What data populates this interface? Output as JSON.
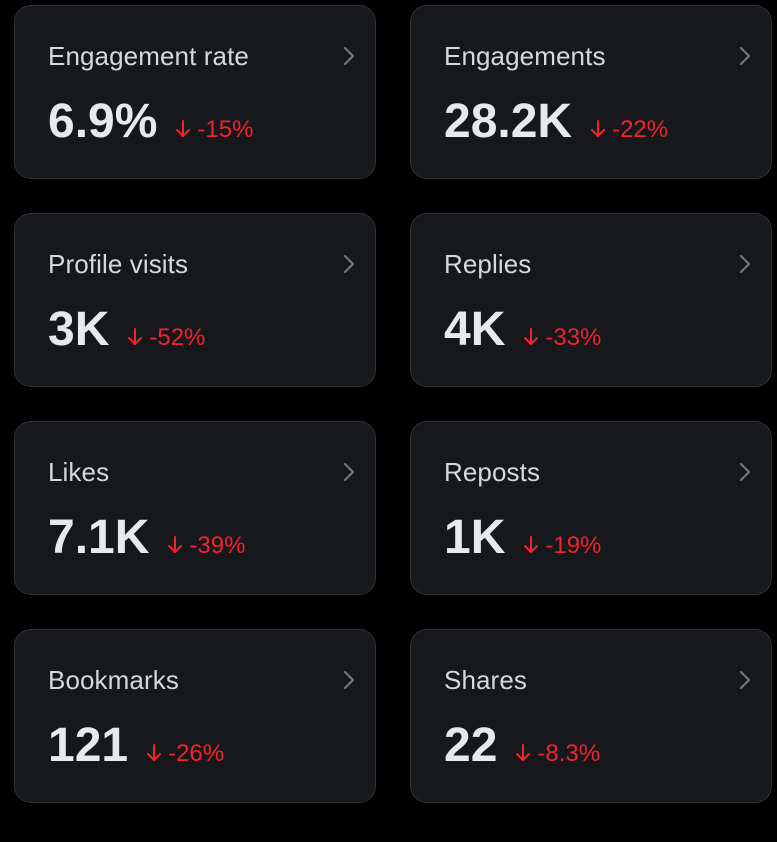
{
  "colors": {
    "background": "#000000",
    "card_background": "#16181c",
    "card_border": "#2f3336",
    "title_text": "#d6d9dc",
    "value_text": "#e7e9ea",
    "negative_delta": "#f4212e",
    "chevron": "#71767b"
  },
  "icons": {
    "chevron": "chevron-right-icon",
    "delta": "down-arrow-icon"
  },
  "metrics": [
    {
      "label": "Engagement rate",
      "value": "6.9%",
      "delta": "-15%"
    },
    {
      "label": "Engagements",
      "value": "28.2K",
      "delta": "-22%"
    },
    {
      "label": "Profile visits",
      "value": "3K",
      "delta": "-52%"
    },
    {
      "label": "Replies",
      "value": "4K",
      "delta": "-33%"
    },
    {
      "label": "Likes",
      "value": "7.1K",
      "delta": "-39%"
    },
    {
      "label": "Reposts",
      "value": "1K",
      "delta": "-19%"
    },
    {
      "label": "Bookmarks",
      "value": "121",
      "delta": "-26%"
    },
    {
      "label": "Shares",
      "value": "22",
      "delta": "-8.3%"
    }
  ]
}
